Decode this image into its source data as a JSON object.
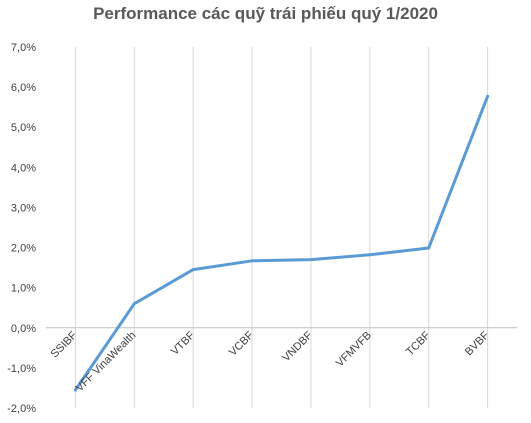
{
  "chart_data": {
    "type": "line",
    "title": "Performance các quỹ trái phiếu quý 1/2020",
    "xlabel": "",
    "ylabel": "",
    "categories": [
      "SSIBF",
      "VFF VinaWealth",
      "VTBF",
      "VCBF",
      "VNDBF",
      "VFMVFB",
      "TCBF",
      "BVBF"
    ],
    "series": [
      {
        "values": [
          -1.55,
          0.6,
          1.45,
          1.67,
          1.7,
          1.82,
          1.99,
          5.77
        ]
      }
    ],
    "ylim": [
      -2.0,
      7.0
    ],
    "yticks": [
      "7,0%",
      "6,0%",
      "5,0%",
      "4,0%",
      "3,0%",
      "2,0%",
      "1,0%",
      "0,0%",
      "-1,0%",
      "-2,0%"
    ],
    "grid": "vertical",
    "legend": "none",
    "colors": {
      "line": "#5b9bd5",
      "grid": "#d9d9d9",
      "axis": "#bfbfbf",
      "text": "#404040",
      "title": "#595959"
    }
  }
}
